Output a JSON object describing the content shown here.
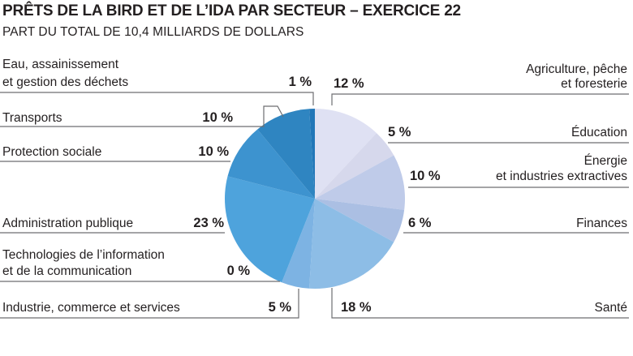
{
  "chart_data": {
    "type": "pie",
    "title": "PRÊTS DE LA BIRD ET DE L’IDA PAR SECTEUR – EXERCICE 22",
    "subtitle": "PART DU TOTAL DE 10,4 MILLIARDS DE DOLLARS",
    "unit": "%",
    "start": "12 o'clock",
    "direction": "clockwise",
    "slices": [
      {
        "id": "agriculture",
        "label": [
          "Agriculture, pêche",
          "et foresterie"
        ],
        "value": 12,
        "pct_label": "12 %",
        "color": "#dfe1f3"
      },
      {
        "id": "education",
        "label": [
          "Éducation"
        ],
        "value": 5,
        "pct_label": "5 %",
        "color": "#d6d8ec"
      },
      {
        "id": "energie",
        "label": [
          "Énergie",
          "et industries extractives"
        ],
        "value": 10,
        "pct_label": "10 %",
        "color": "#bfcbe9"
      },
      {
        "id": "finances",
        "label": [
          "Finances"
        ],
        "value": 6,
        "pct_label": "6 %",
        "color": "#abbfe3"
      },
      {
        "id": "sante",
        "label": [
          "Santé"
        ],
        "value": 18,
        "pct_label": "18 %",
        "color": "#8dbde6"
      },
      {
        "id": "industrie",
        "label": [
          "Industrie, commerce et services"
        ],
        "value": 5,
        "pct_label": "5 %",
        "color": "#7db3e3"
      },
      {
        "id": "tic",
        "label": [
          "Technologies de l’information",
          "et de la communication"
        ],
        "value": 0,
        "pct_label": "0 %",
        "color": "#6aaade"
      },
      {
        "id": "administration",
        "label": [
          "Administration publique"
        ],
        "value": 23,
        "pct_label": "23 %",
        "color": "#4ea3dc"
      },
      {
        "id": "protection",
        "label": [
          "Protection sociale"
        ],
        "value": 10,
        "pct_label": "10 %",
        "color": "#3d93cf"
      },
      {
        "id": "transports",
        "label": [
          "Transports"
        ],
        "value": 10,
        "pct_label": "10 %",
        "color": "#2f85c1"
      },
      {
        "id": "eau",
        "label": [
          "Eau, assainissement",
          "et gestion des déchets"
        ],
        "value": 1,
        "pct_label": "1 %",
        "color": "#2277b8"
      }
    ]
  }
}
